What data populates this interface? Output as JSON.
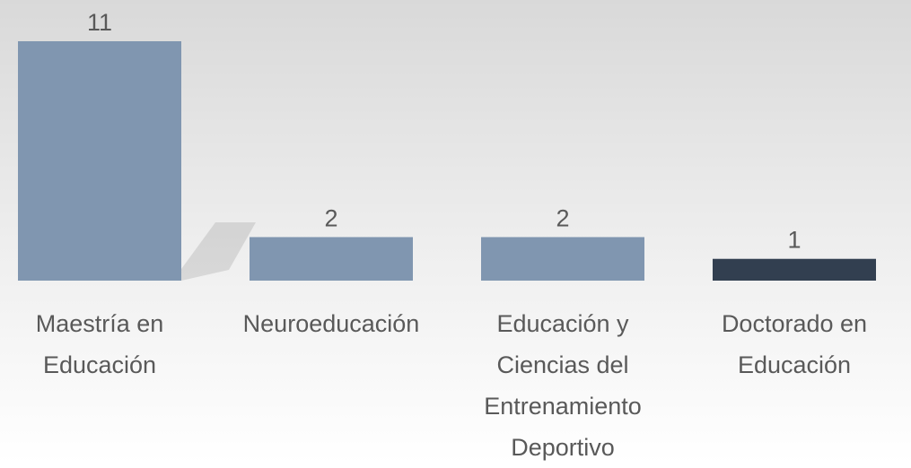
{
  "chart_data": {
    "type": "bar",
    "categories": [
      "Maestría en Educación",
      "Neuroeducación",
      "Educación y Ciencias del Entrenamiento Deportivo",
      "Doctorado en Educación"
    ],
    "values": [
      11,
      2,
      2,
      1
    ],
    "colors": [
      "#8096b0",
      "#8096b0",
      "#8096b0",
      "#323f50"
    ],
    "ylim": [
      0,
      11
    ]
  }
}
